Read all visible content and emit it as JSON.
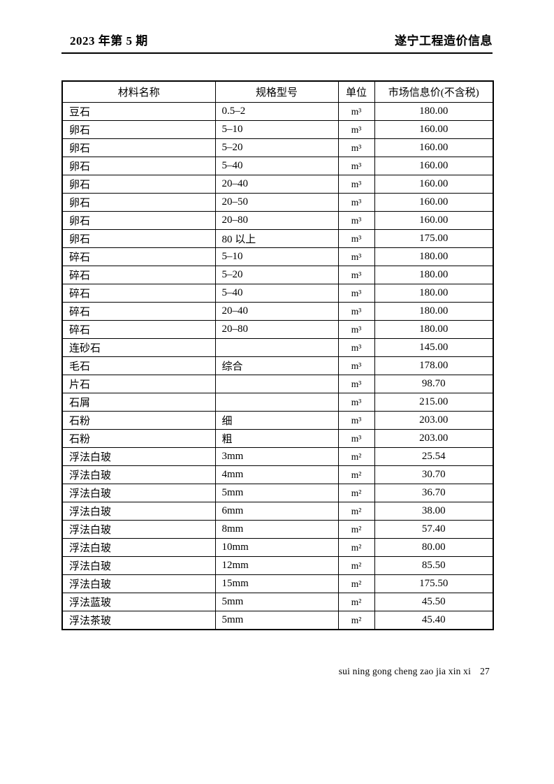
{
  "page_header": {
    "issue": "2023 年第 5 期",
    "publication": "遂宁工程造价信息"
  },
  "table": {
    "columns": [
      "材料名称",
      "规格型号",
      "单位",
      "市场信息价(不含税)"
    ],
    "rows": [
      {
        "name": "豆石",
        "spec": "0.5–2",
        "unit": "m³",
        "price": "180.00"
      },
      {
        "name": "卵石",
        "spec": "5–10",
        "unit": "m³",
        "price": "160.00"
      },
      {
        "name": "卵石",
        "spec": "5–20",
        "unit": "m³",
        "price": "160.00"
      },
      {
        "name": "卵石",
        "spec": "5–40",
        "unit": "m³",
        "price": "160.00"
      },
      {
        "name": "卵石",
        "spec": "20–40",
        "unit": "m³",
        "price": "160.00"
      },
      {
        "name": "卵石",
        "spec": "20–50",
        "unit": "m³",
        "price": "160.00"
      },
      {
        "name": "卵石",
        "spec": "20–80",
        "unit": "m³",
        "price": "160.00"
      },
      {
        "name": "卵石",
        "spec": "80 以上",
        "unit": "m³",
        "price": "175.00"
      },
      {
        "name": "碎石",
        "spec": "5–10",
        "unit": "m³",
        "price": "180.00"
      },
      {
        "name": "碎石",
        "spec": "5–20",
        "unit": "m³",
        "price": "180.00"
      },
      {
        "name": "碎石",
        "spec": "5–40",
        "unit": "m³",
        "price": "180.00"
      },
      {
        "name": "碎石",
        "spec": "20–40",
        "unit": "m³",
        "price": "180.00"
      },
      {
        "name": "碎石",
        "spec": "20–80",
        "unit": "m³",
        "price": "180.00"
      },
      {
        "name": "连砂石",
        "spec": "",
        "unit": "m³",
        "price": "145.00"
      },
      {
        "name": "毛石",
        "spec": "综合",
        "unit": "m³",
        "price": "178.00"
      },
      {
        "name": "片石",
        "spec": "",
        "unit": "m³",
        "price": "98.70"
      },
      {
        "name": "石屑",
        "spec": "",
        "unit": "m³",
        "price": "215.00"
      },
      {
        "name": "石粉",
        "spec": "细",
        "unit": "m³",
        "price": "203.00"
      },
      {
        "name": "石粉",
        "spec": "粗",
        "unit": "m³",
        "price": "203.00"
      },
      {
        "name": "浮法白玻",
        "spec": "3mm",
        "unit": "m²",
        "price": "25.54"
      },
      {
        "name": "浮法白玻",
        "spec": "4mm",
        "unit": "m²",
        "price": "30.70"
      },
      {
        "name": "浮法白玻",
        "spec": "5mm",
        "unit": "m²",
        "price": "36.70"
      },
      {
        "name": "浮法白玻",
        "spec": "6mm",
        "unit": "m²",
        "price": "38.00"
      },
      {
        "name": "浮法白玻",
        "spec": "8mm",
        "unit": "m²",
        "price": "57.40"
      },
      {
        "name": "浮法白玻",
        "spec": "10mm",
        "unit": "m²",
        "price": "80.00"
      },
      {
        "name": "浮法白玻",
        "spec": "12mm",
        "unit": "m²",
        "price": "85.50"
      },
      {
        "name": "浮法白玻",
        "spec": "15mm",
        "unit": "m²",
        "price": "175.50"
      },
      {
        "name": "浮法蓝玻",
        "spec": "5mm",
        "unit": "m²",
        "price": "45.50"
      },
      {
        "name": "浮法茶玻",
        "spec": "5mm",
        "unit": "m²",
        "price": "45.40"
      }
    ]
  },
  "page_footer": {
    "text": "sui ning gong cheng zao jia xin xi",
    "page_number": "27"
  }
}
